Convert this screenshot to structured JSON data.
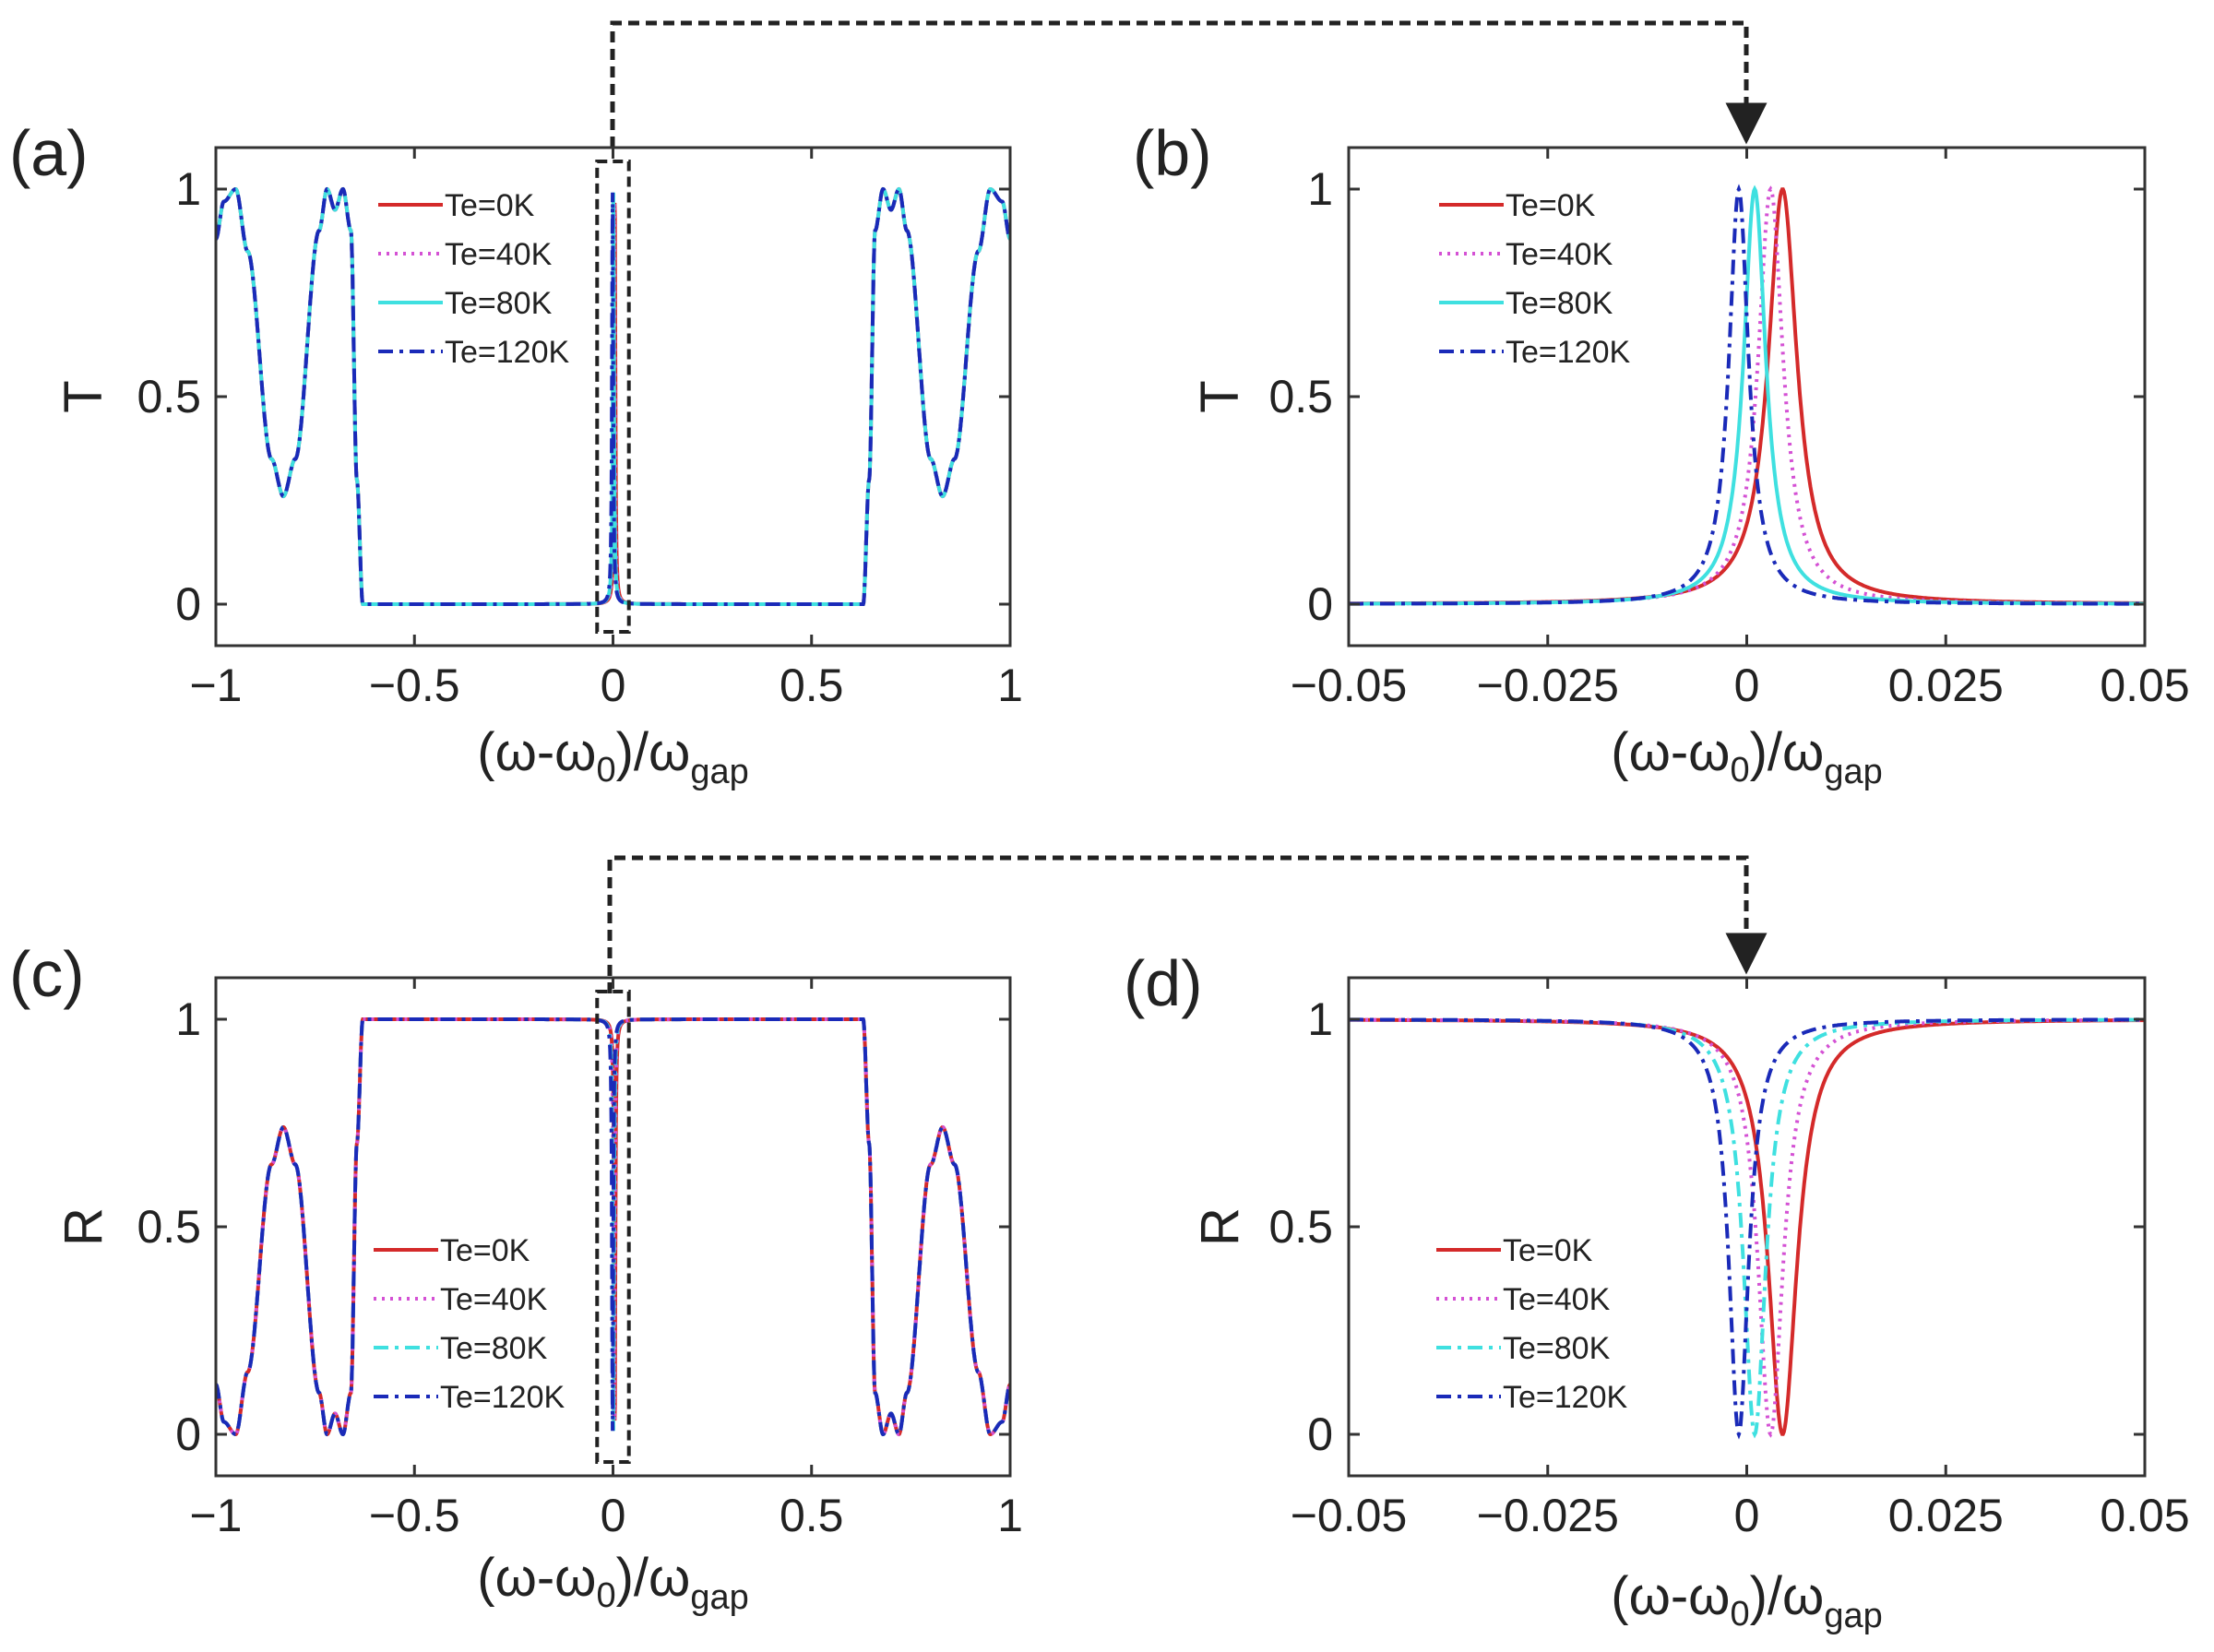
{
  "colors": {
    "te0": "#d42a2a",
    "te40": "#d451d4",
    "te80": "#3fe0e0",
    "te120": "#1a2ab8",
    "axis": "#333333",
    "text": "#222222"
  },
  "chart_data": [
    {
      "panel": "(a)",
      "type": "line",
      "ylabel": "T",
      "xlabel": {
        "main": "(ω-ω",
        "sub0": "0",
        "mid": ")/ω",
        "sub1": "gap"
      },
      "xlim": [
        -1,
        1
      ],
      "ylim": [
        -0.1,
        1.1
      ],
      "xticks": [
        -1,
        -0.5,
        0,
        0.5,
        1
      ],
      "xtick_labels": [
        "−1",
        "−0.5",
        "0",
        "0.5",
        "1"
      ],
      "yticks": [
        0,
        0.5,
        1
      ],
      "ytick_labels": [
        "0",
        "0.5",
        "1"
      ],
      "legend": [
        "Te=0K",
        "Te=40K",
        "Te=80K",
        "Te=120K"
      ],
      "legend_styles": [
        "solid",
        "dotted",
        "solid",
        "dashdot"
      ],
      "legend_position": "top-left",
      "highlight_box": [
        -0.04,
        0.04
      ],
      "series": [
        {
          "name": "Te=0K",
          "shift": 0.0045
        },
        {
          "name": "Te=40K",
          "shift": 0.003
        },
        {
          "name": "Te=80K",
          "shift": 0.001
        },
        {
          "name": "Te=120K",
          "shift": -0.001
        }
      ]
    },
    {
      "panel": "(b)",
      "type": "line",
      "ylabel": "T",
      "xlabel": {
        "main": "(ω-ω",
        "sub0": "0",
        "mid": ")/ω",
        "sub1": "gap"
      },
      "xlim": [
        -0.05,
        0.05
      ],
      "ylim": [
        -0.1,
        1.1
      ],
      "xticks": [
        -0.05,
        -0.025,
        0,
        0.025,
        0.05
      ],
      "xtick_labels": [
        "−0.05",
        "−0.025",
        "0",
        "0.025",
        "0.05"
      ],
      "yticks": [
        0,
        0.5,
        1
      ],
      "ytick_labels": [
        "0",
        "0.5",
        "1"
      ],
      "legend": [
        "Te=0K",
        "Te=40K",
        "Te=80K",
        "Te=120K"
      ],
      "legend_styles": [
        "solid",
        "dotted",
        "solid",
        "dashdot"
      ],
      "legend_position": "top-left",
      "series": [
        {
          "name": "Te=0K",
          "shift": 0.0045,
          "width": 0.0022
        },
        {
          "name": "Te=40K",
          "shift": 0.003,
          "width": 0.0019
        },
        {
          "name": "Te=80K",
          "shift": 0.001,
          "width": 0.0017
        },
        {
          "name": "Te=120K",
          "shift": -0.001,
          "width": 0.0015
        }
      ]
    },
    {
      "panel": "(c)",
      "type": "line",
      "ylabel": "R",
      "xlabel": {
        "main": "(ω-ω",
        "sub0": "0",
        "mid": ")/ω",
        "sub1": "gap"
      },
      "xlim": [
        -1,
        1
      ],
      "ylim": [
        -0.1,
        1.1
      ],
      "xticks": [
        -1,
        -0.5,
        0,
        0.5,
        1
      ],
      "xtick_labels": [
        "−1",
        "−0.5",
        "0",
        "0.5",
        "1"
      ],
      "yticks": [
        0,
        0.5,
        1
      ],
      "ytick_labels": [
        "0",
        "0.5",
        "1"
      ],
      "legend": [
        "Te=0K",
        "Te=40K",
        "Te=80K",
        "Te=120K"
      ],
      "legend_styles": [
        "solid",
        "dotted",
        "dashdot",
        "dashdot"
      ],
      "legend_position": "lower-left",
      "highlight_box": [
        -0.04,
        0.04
      ],
      "series": [
        {
          "name": "Te=0K",
          "shift": 0.0045
        },
        {
          "name": "Te=40K",
          "shift": 0.003
        },
        {
          "name": "Te=80K",
          "shift": 0.001
        },
        {
          "name": "Te=120K",
          "shift": -0.001
        }
      ]
    },
    {
      "panel": "(d)",
      "type": "line",
      "ylabel": "R",
      "xlabel": {
        "main": "(ω-ω",
        "sub0": "0",
        "mid": ")/ω",
        "sub1": "gap"
      },
      "xlim": [
        -0.05,
        0.05
      ],
      "ylim": [
        -0.1,
        1.1
      ],
      "xticks": [
        -0.05,
        -0.025,
        0,
        0.025,
        0.05
      ],
      "xtick_labels": [
        "−0.05",
        "−0.025",
        "0",
        "0.025",
        "0.05"
      ],
      "yticks": [
        0,
        0.5,
        1
      ],
      "ytick_labels": [
        "0",
        "0.5",
        "1"
      ],
      "legend": [
        "Te=0K",
        "Te=40K",
        "Te=80K",
        "Te=120K"
      ],
      "legend_styles": [
        "solid",
        "dotted",
        "dashdot",
        "dashdot"
      ],
      "legend_position": "lower-left",
      "series": [
        {
          "name": "Te=0K",
          "shift": 0.0045,
          "width": 0.0022
        },
        {
          "name": "Te=40K",
          "shift": 0.003,
          "width": 0.0019
        },
        {
          "name": "Te=80K",
          "shift": 0.001,
          "width": 0.0017
        },
        {
          "name": "Te=120K",
          "shift": -0.001,
          "width": 0.0015
        }
      ]
    }
  ],
  "outer_passband": {
    "T_points": [
      [
        0.63,
        0
      ],
      [
        0.645,
        0.3
      ],
      [
        0.66,
        0.9
      ],
      [
        0.68,
        1.0
      ],
      [
        0.7,
        0.95
      ],
      [
        0.72,
        1.0
      ],
      [
        0.74,
        0.9
      ],
      [
        0.8,
        0.35
      ],
      [
        0.83,
        0.26
      ],
      [
        0.86,
        0.35
      ],
      [
        0.92,
        0.85
      ],
      [
        0.95,
        1.0
      ],
      [
        0.98,
        0.97
      ],
      [
        1.0,
        0.88
      ]
    ],
    "R_points": [
      [
        0.63,
        1.0
      ],
      [
        0.645,
        0.7
      ],
      [
        0.66,
        0.1
      ],
      [
        0.68,
        0.0
      ],
      [
        0.7,
        0.05
      ],
      [
        0.72,
        0.0
      ],
      [
        0.74,
        0.1
      ],
      [
        0.8,
        0.65
      ],
      [
        0.83,
        0.74
      ],
      [
        0.86,
        0.65
      ],
      [
        0.92,
        0.15
      ],
      [
        0.95,
        0.0
      ],
      [
        0.98,
        0.03
      ],
      [
        1.0,
        0.12
      ]
    ]
  }
}
